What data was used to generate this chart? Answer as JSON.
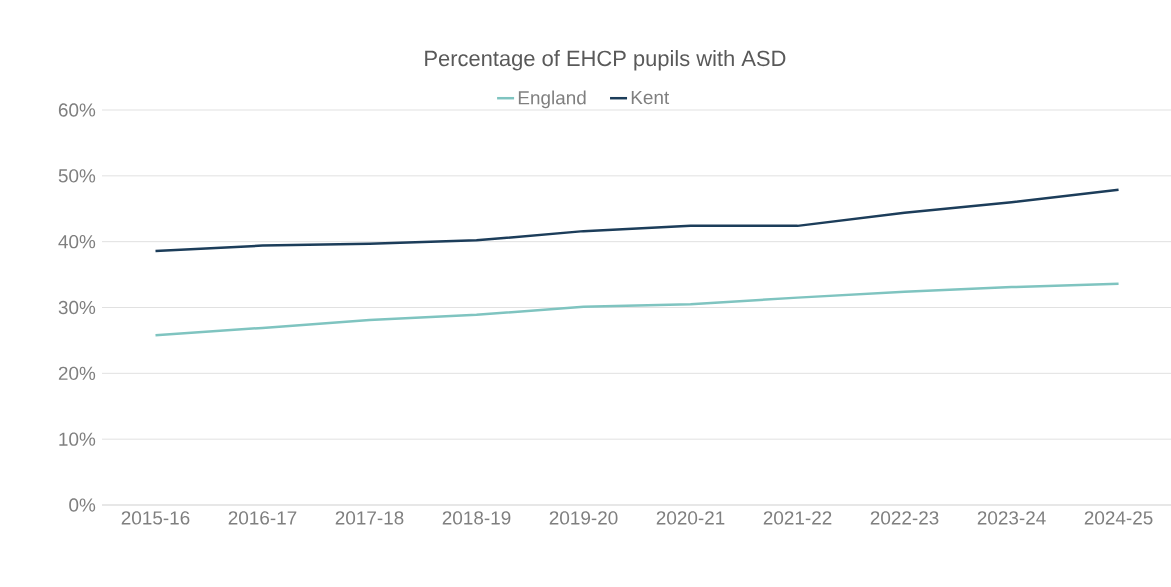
{
  "chart_data": {
    "type": "line",
    "title": "Percentage of EHCP pupils with ASD",
    "categories": [
      "2015-16",
      "2016-17",
      "2017-18",
      "2018-19",
      "2019-20",
      "2020-21",
      "2021-22",
      "2022-23",
      "2023-24",
      "2024-25"
    ],
    "series": [
      {
        "name": "England",
        "color": "#7fc4c0",
        "values": [
          25.8,
          26.9,
          28.1,
          28.9,
          30.1,
          30.5,
          31.5,
          32.4,
          33.1,
          33.6
        ]
      },
      {
        "name": "Kent",
        "color": "#1c3d5a",
        "values": [
          38.6,
          39.4,
          39.7,
          40.2,
          41.6,
          42.4,
          42.4,
          44.4,
          46.0,
          47.9
        ]
      }
    ],
    "ylim": [
      0,
      60
    ],
    "yticks": [
      {
        "value": 0,
        "label": "0%"
      },
      {
        "value": 10,
        "label": "10%"
      },
      {
        "value": 20,
        "label": "20%"
      },
      {
        "value": 30,
        "label": "30%"
      },
      {
        "value": 40,
        "label": "40%"
      },
      {
        "value": 50,
        "label": "50%"
      },
      {
        "value": 60,
        "label": "60%"
      }
    ],
    "grid": "y",
    "legend": "top",
    "marker": "none",
    "line_style": "solid"
  }
}
